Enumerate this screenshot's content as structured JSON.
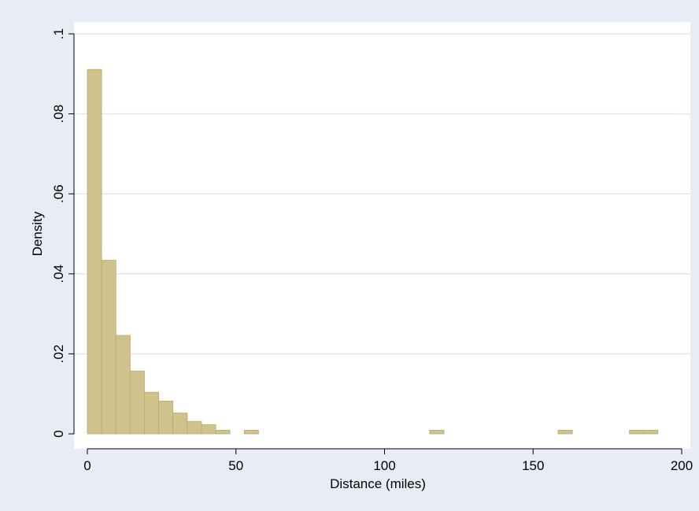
{
  "chart_data": {
    "type": "bar",
    "title": "",
    "xlabel": "Distance (miles)",
    "ylabel": "Density",
    "xlim": [
      -3,
      205
    ],
    "ylim": [
      0,
      0.1
    ],
    "grid": true,
    "bin_width": 4.8,
    "x_ticks": [
      {
        "value": 0,
        "label": "0"
      },
      {
        "value": 50,
        "label": "50"
      },
      {
        "value": 100,
        "label": "100"
      },
      {
        "value": 150,
        "label": "150"
      },
      {
        "value": 200,
        "label": "200"
      }
    ],
    "y_ticks": [
      {
        "value": 0,
        "label": "0"
      },
      {
        "value": 0.02,
        "label": ".02"
      },
      {
        "value": 0.04,
        "label": ".04"
      },
      {
        "value": 0.06,
        "label": ".06"
      },
      {
        "value": 0.08,
        "label": ".08"
      },
      {
        "value": 0.1,
        "label": ".1"
      }
    ],
    "bins": [
      {
        "x0": 0.0,
        "x1": 4.8,
        "y": 0.0911
      },
      {
        "x0": 4.8,
        "x1": 9.6,
        "y": 0.0434
      },
      {
        "x0": 9.6,
        "x1": 14.4,
        "y": 0.0246
      },
      {
        "x0": 14.4,
        "x1": 19.2,
        "y": 0.0157
      },
      {
        "x0": 19.2,
        "x1": 24.0,
        "y": 0.0104
      },
      {
        "x0": 24.0,
        "x1": 28.8,
        "y": 0.0082
      },
      {
        "x0": 28.8,
        "x1": 33.6,
        "y": 0.0052
      },
      {
        "x0": 33.6,
        "x1": 38.4,
        "y": 0.0031
      },
      {
        "x0": 38.4,
        "x1": 43.2,
        "y": 0.0023
      },
      {
        "x0": 43.2,
        "x1": 48.0,
        "y": 0.0009
      },
      {
        "x0": 52.8,
        "x1": 57.6,
        "y": 0.0009
      },
      {
        "x0": 115.2,
        "x1": 120.0,
        "y": 0.0009
      },
      {
        "x0": 158.4,
        "x1": 163.2,
        "y": 0.0009
      },
      {
        "x0": 182.4,
        "x1": 187.2,
        "y": 0.0009
      },
      {
        "x0": 187.2,
        "x1": 192.0,
        "y": 0.0009
      }
    ],
    "colors": {
      "bar_fill": "#cfc28c",
      "bar_stroke": "#b8aa70",
      "plot_bg": "#ffffff",
      "outer_bg": "#e8ecf4",
      "grid": "#e3e7ef",
      "axis": "#000000"
    }
  }
}
